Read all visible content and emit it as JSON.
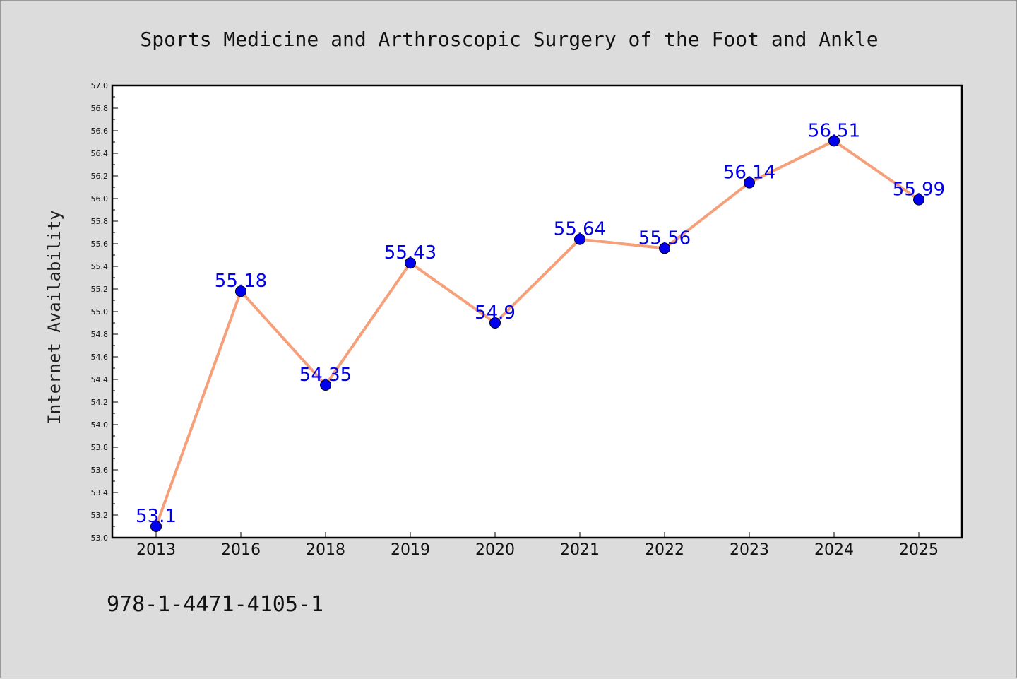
{
  "chart_data": {
    "type": "line",
    "title": "Sports Medicine and Arthroscopic Surgery of the Foot and Ankle",
    "xlabel": "",
    "ylabel": "Internet Availability",
    "categories": [
      "2013",
      "2016",
      "2018",
      "2019",
      "2020",
      "2021",
      "2022",
      "2023",
      "2024",
      "2025"
    ],
    "values": [
      53.1,
      55.18,
      54.35,
      55.43,
      54.9,
      55.64,
      55.56,
      56.14,
      56.51,
      55.99
    ],
    "data_labels": [
      "53.1",
      "55.18",
      "54.35",
      "55.43",
      "54.9",
      "55.64",
      "55.56",
      "56.14",
      "56.51",
      "55.99"
    ],
    "ylim": [
      53.0,
      57.0
    ],
    "yticks": [
      "53.0",
      "53.2",
      "53.4",
      "53.6",
      "53.8",
      "54.0",
      "54.2",
      "54.4",
      "54.6",
      "54.8",
      "55.0",
      "55.2",
      "55.4",
      "55.6",
      "55.8",
      "56.0",
      "56.2",
      "56.4",
      "56.6",
      "56.8",
      "57.0"
    ],
    "grid": false,
    "line_color": "#f5a07a",
    "marker_color": "#0000ee",
    "label_color": "#0000ee"
  },
  "footnote": "978-1-4471-4105-1"
}
